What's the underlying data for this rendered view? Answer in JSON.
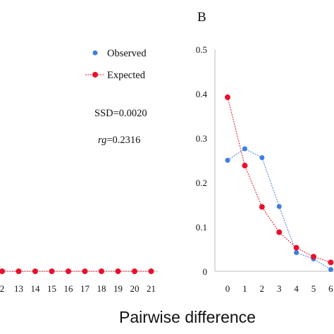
{
  "chart_data": [
    {
      "type": "line",
      "panel": "",
      "categories": [
        "2",
        "13",
        "14",
        "15",
        "16",
        "17",
        "18",
        "19",
        "20",
        "21"
      ],
      "series": [
        {
          "name": "Expected",
          "color": "#e8102c",
          "values": [
            0,
            0,
            0,
            0,
            0,
            0,
            0,
            0,
            0,
            0
          ]
        }
      ],
      "annotations": {
        "ssd": "SSD=0.0020",
        "rg_symbol": "rg",
        "rg_value": "=0.2316"
      },
      "legend": {
        "position": "top-right",
        "items": [
          {
            "label": "Observed",
            "color": "#3d7fe0"
          },
          {
            "label": "Expected",
            "color": "#e8102c"
          }
        ]
      }
    },
    {
      "type": "line",
      "panel": "B",
      "x": [
        0,
        1,
        2,
        3,
        4,
        5,
        6
      ],
      "xticks": [
        "0",
        "1",
        "2",
        "3",
        "4",
        "5",
        "6"
      ],
      "yticks": [
        "0",
        "0.1",
        "0.2",
        "0.3",
        "0.4",
        "0.5"
      ],
      "ylim": [
        0,
        0.5
      ],
      "series": [
        {
          "name": "Observed",
          "color": "#3d7fe0",
          "values": [
            0.25,
            0.276,
            0.256,
            0.146,
            0.042,
            0.028,
            0.004
          ]
        },
        {
          "name": "Expected",
          "color": "#e8102c",
          "values": [
            0.392,
            0.238,
            0.145,
            0.088,
            0.053,
            0.033,
            0.02
          ]
        }
      ]
    }
  ],
  "xlabel": "Pairwise difference"
}
